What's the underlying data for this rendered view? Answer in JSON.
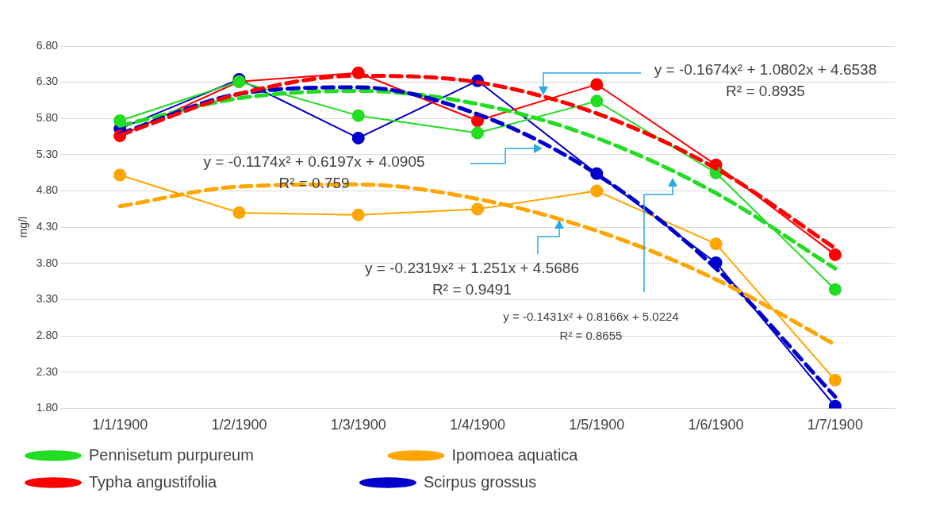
{
  "chart_data": {
    "type": "line",
    "ylabel": "mg/l",
    "categories": [
      "1/1/1900",
      "1/2/1900",
      "1/3/1900",
      "1/4/1900",
      "1/5/1900",
      "1/6/1900",
      "1/7/1900"
    ],
    "series": [
      {
        "name": "Pennisetum purpureum",
        "color": "#22dd22",
        "values": [
          5.77,
          6.31,
          5.84,
          5.6,
          6.04,
          5.05,
          3.44
        ]
      },
      {
        "name": "Ipomoea aquatica",
        "color": "#ffa500",
        "values": [
          5.02,
          4.5,
          4.47,
          4.55,
          4.8,
          4.07,
          2.19
        ]
      },
      {
        "name": "Typha angustifolia",
        "color": "#ff0000",
        "values": [
          5.56,
          6.31,
          6.43,
          5.77,
          6.27,
          5.16,
          3.92
        ]
      },
      {
        "name": "Scirpus grossus",
        "color": "#0000cc",
        "values": [
          5.66,
          6.34,
          5.53,
          6.32,
          5.04,
          3.81,
          1.83
        ]
      },
      {
        "type": "line",
        "line_style": "dashed",
        "marker": "none",
        "color": "#ff0000",
        "values": [
          5.57,
          6.14,
          6.39,
          6.3,
          5.87,
          5.11,
          4.01
        ]
      },
      {
        "type": "line",
        "line_style": "dashed",
        "marker": "none",
        "color": "#ffa500",
        "values": [
          4.59,
          4.86,
          4.89,
          4.69,
          4.25,
          3.58,
          2.68
        ]
      },
      {
        "type": "line",
        "line_style": "dashed",
        "marker": "none",
        "color": "#0000cc",
        "values": [
          5.59,
          6.14,
          6.23,
          5.86,
          5.03,
          3.73,
          1.96
        ]
      },
      {
        "type": "line",
        "line_style": "dashed",
        "marker": "none",
        "color": "#22dd22",
        "values": [
          5.7,
          6.08,
          6.18,
          6,
          5.53,
          4.77,
          3.73
        ]
      }
    ],
    "ylim": [
      1.8,
      6.8
    ],
    "yticks": [
      {
        "value": 1.8,
        "label": "1.80"
      },
      {
        "value": 2.3,
        "label": "2.30"
      },
      {
        "value": 2.8,
        "label": "2.80"
      },
      {
        "value": 3.3,
        "label": "3.30"
      },
      {
        "value": 3.8,
        "label": "3.80"
      },
      {
        "value": 4.3,
        "label": "4.30"
      },
      {
        "value": 4.8,
        "label": "4.80"
      },
      {
        "value": 5.3,
        "label": "5.30"
      },
      {
        "value": 5.8,
        "label": "5.80"
      },
      {
        "value": 6.3,
        "label": "6.30"
      },
      {
        "value": 6.8,
        "label": "6.80"
      }
    ],
    "grid": "y",
    "legend": "bottom",
    "marker": "circle",
    "line_style": "solid",
    "annotations": [
      "y = -0.1674x² + 1.0802x + 4.6538",
      "R² = 0.8935",
      "y = -0.1174x² + 0.6197x + 4.0905",
      "R² = 0.759",
      "y = -0.2319x² + 1.251x + 4.5686",
      "R² = 0.9491",
      "y = -0.1431x² + 0.8166x + 5.0224",
      "R² = 0.8655"
    ]
  }
}
